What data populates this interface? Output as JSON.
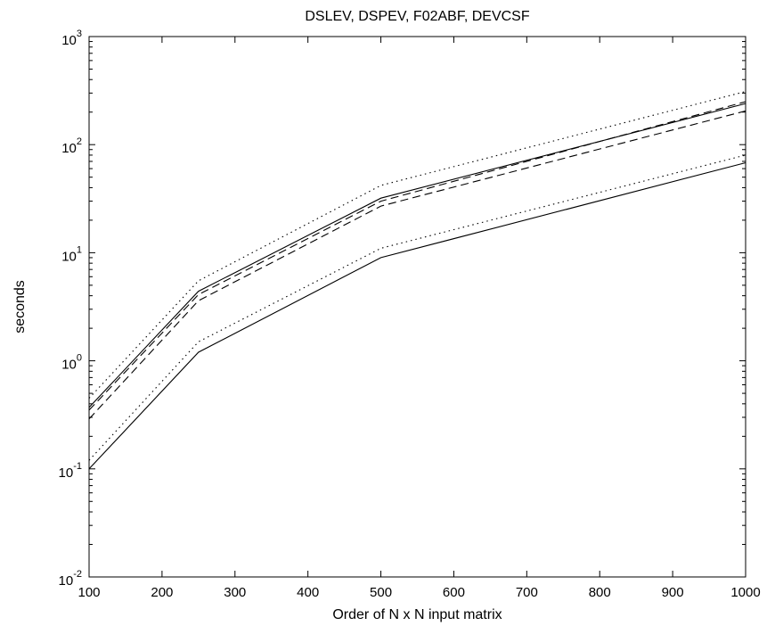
{
  "chart_data": {
    "type": "line",
    "title": "DSLEV, DSPEV, F02ABF, DEVCSF",
    "xlabel": "Order of N x N input matrix",
    "ylabel": "seconds",
    "xlim": [
      100,
      1000
    ],
    "ylim": [
      0.01,
      1000
    ],
    "yscale": "log",
    "x_ticks": [
      100,
      200,
      300,
      400,
      500,
      600,
      700,
      800,
      900,
      1000
    ],
    "y_ticks": [
      {
        "base": "10",
        "exp": "-2",
        "value": 0.01
      },
      {
        "base": "10",
        "exp": "-1",
        "value": 0.1
      },
      {
        "base": "10",
        "exp": "0",
        "value": 1
      },
      {
        "base": "10",
        "exp": "1",
        "value": 10
      },
      {
        "base": "10",
        "exp": "2",
        "value": 100
      },
      {
        "base": "10",
        "exp": "3",
        "value": 1000
      }
    ],
    "grid": false,
    "x": [
      100,
      250,
      500,
      1000
    ],
    "series": [
      {
        "style": "dotted",
        "values": [
          0.45,
          5.5,
          42,
          310
        ]
      },
      {
        "style": "solid",
        "values": [
          0.37,
          4.4,
          32,
          240
        ]
      },
      {
        "style": "dashed",
        "values": [
          0.35,
          4.1,
          30,
          250
        ]
      },
      {
        "style": "dashed",
        "values": [
          0.29,
          3.6,
          27,
          205
        ]
      },
      {
        "style": "dotted",
        "values": [
          0.12,
          1.5,
          11,
          80
        ]
      },
      {
        "style": "solid",
        "values": [
          0.1,
          1.2,
          9,
          68
        ]
      }
    ],
    "line_color": "#000000"
  }
}
